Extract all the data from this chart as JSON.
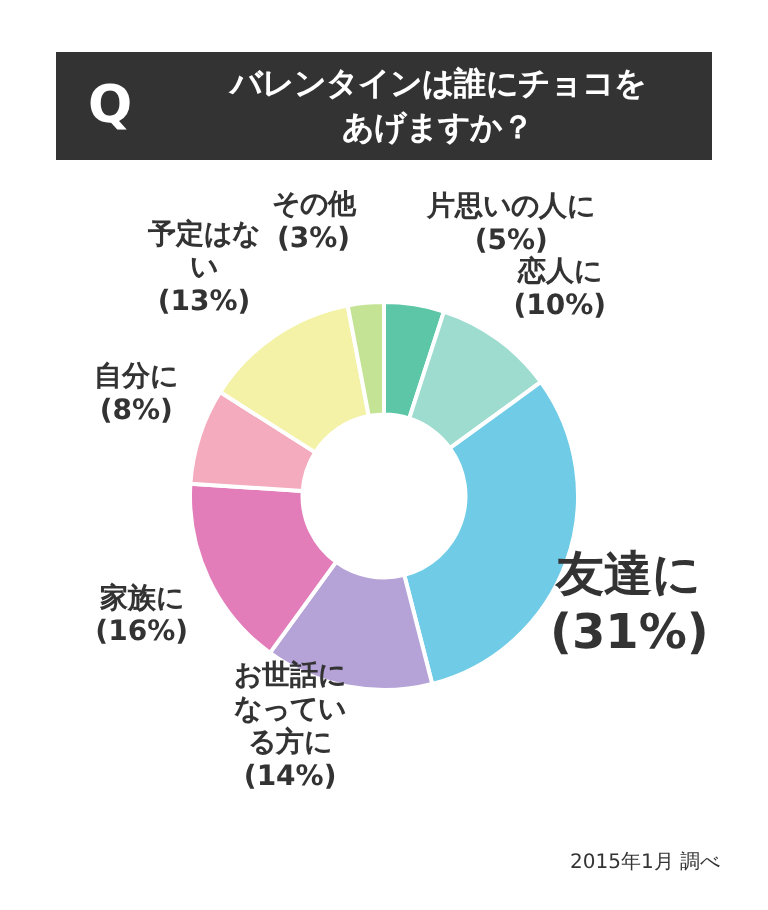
{
  "chart_data": {
    "type": "donut",
    "title": "バレンタインは誰にチョコをあげますか？",
    "categories": [
      "片思いの人に",
      "恋人に",
      "友達に",
      "お世話になっている方に",
      "家族に",
      "自分に",
      "予定はない",
      "その他"
    ],
    "values": [
      5,
      10,
      31,
      14,
      16,
      8,
      13,
      3
    ],
    "value_labels": [
      "(5%)",
      "(10%)",
      "(31%)",
      "(14%)",
      "(16%)",
      "(8%)",
      "(13%)",
      "(3%)"
    ],
    "colors": [
      "#5cc6a6",
      "#9ddccf",
      "#6fcbe6",
      "#b5a3d8",
      "#e27db9",
      "#f4abbd",
      "#f3f2a6",
      "#c4e394"
    ],
    "legend": false,
    "annotations": [
      "Q",
      "2015年1月 調べ"
    ]
  }
}
